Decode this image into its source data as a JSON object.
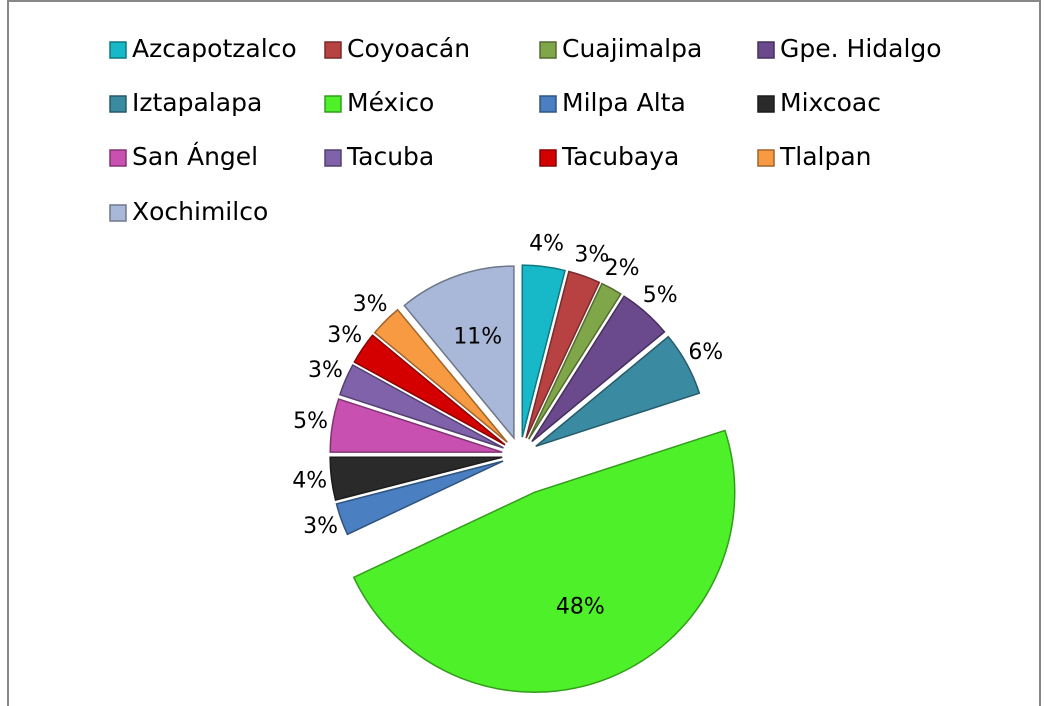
{
  "chart_data": {
    "type": "pie",
    "categories": [
      "Azcapotzalco",
      "Coyoacán",
      "Cuajimalpa",
      "Gpe. Hidalgo",
      "Iztapalapa",
      "México",
      "Milpa Alta",
      "Mixcoac",
      "San Ángel",
      "Tacuba",
      "Tacubaya",
      "Tlalpan",
      "Xochimilco"
    ],
    "values": [
      4,
      3,
      2,
      5,
      6,
      48,
      3,
      4,
      5,
      3,
      3,
      3,
      11
    ],
    "value_labels": [
      "4%",
      "3%",
      "2%",
      "5%",
      "6%",
      "48%",
      "3%",
      "4%",
      "5%",
      "3%",
      "3%",
      "3%",
      "11%"
    ],
    "colors": [
      "#17b8c8",
      "#b84242",
      "#80a64a",
      "#6a4a8c",
      "#3a8ba2",
      "#4ef02a",
      "#4a7fc2",
      "#2a2a2a",
      "#c850b0",
      "#8062aa",
      "#d40000",
      "#f79a42",
      "#a9b8d8"
    ],
    "legend": "top"
  }
}
